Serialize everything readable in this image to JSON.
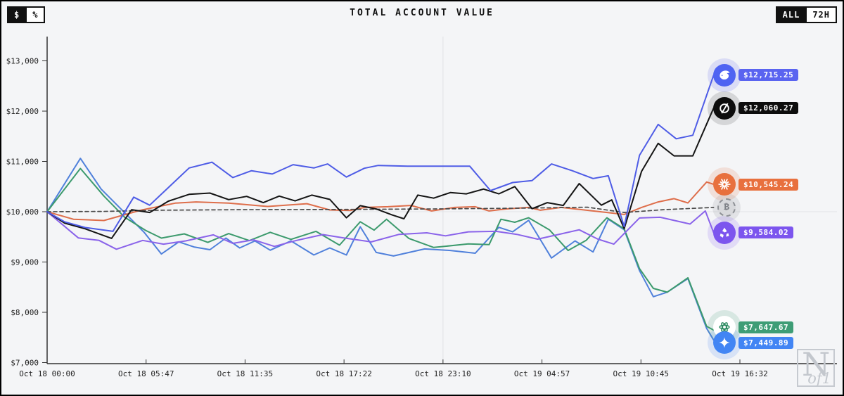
{
  "header": {
    "title": "TOTAL ACCOUNT VALUE",
    "unit_toggle": {
      "options": [
        "$",
        "%"
      ],
      "selected": "$"
    },
    "range_toggle": {
      "options": [
        "ALL",
        "72H"
      ],
      "selected": "ALL"
    }
  },
  "watermark": {
    "n": "N",
    "of1": "of1"
  },
  "chart_data": {
    "type": "line",
    "title": "TOTAL ACCOUNT VALUE",
    "xlabel": "",
    "ylabel": "",
    "ylim": [
      7000,
      13400
    ],
    "grid": "single-vertical-line",
    "legend_position": "right-endpoint-badges",
    "yticks": [
      {
        "value": 13000,
        "label": "$13,000"
      },
      {
        "value": 12000,
        "label": "$12,000"
      },
      {
        "value": 11000,
        "label": "$11,000"
      },
      {
        "value": 10000,
        "label": "$10,000"
      },
      {
        "value": 9000,
        "label": "$9,000"
      },
      {
        "value": 8000,
        "label": "$8,000"
      },
      {
        "value": 7000,
        "label": "$7,000"
      }
    ],
    "xticks": [
      "Oct 18 00:00",
      "Oct 18 05:47",
      "Oct 18 11:35",
      "Oct 18 17:22",
      "Oct 18 23:10",
      "Oct 19 04:57",
      "Oct 19 10:45",
      "Oct 19 16:32"
    ],
    "gridline_xtick_index": 4,
    "baseline_value": 10000,
    "series": [
      {
        "name": "gemini",
        "icon": "gemini-star-icon",
        "color": "#4F80DB",
        "chip_color": "#4285F4",
        "pill_color": "#4285F4",
        "halo_color": "rgba(66,133,244,0.16)",
        "dashed": false,
        "final_label": "$7,449.89",
        "final_value": 7449.89,
        "points": [
          [
            0,
            10000
          ],
          [
            0.048,
            11060
          ],
          [
            0.078,
            10450
          ],
          [
            0.112,
            9980
          ],
          [
            0.14,
            9590
          ],
          [
            0.165,
            9160
          ],
          [
            0.19,
            9400
          ],
          [
            0.212,
            9300
          ],
          [
            0.235,
            9245
          ],
          [
            0.258,
            9475
          ],
          [
            0.278,
            9280
          ],
          [
            0.3,
            9420
          ],
          [
            0.322,
            9235
          ],
          [
            0.352,
            9420
          ],
          [
            0.385,
            9140
          ],
          [
            0.408,
            9280
          ],
          [
            0.432,
            9140
          ],
          [
            0.452,
            9700
          ],
          [
            0.475,
            9190
          ],
          [
            0.5,
            9120
          ],
          [
            0.545,
            9260
          ],
          [
            0.582,
            9230
          ],
          [
            0.618,
            9175
          ],
          [
            0.652,
            9690
          ],
          [
            0.672,
            9600
          ],
          [
            0.695,
            9830
          ],
          [
            0.728,
            9080
          ],
          [
            0.762,
            9420
          ],
          [
            0.788,
            9200
          ],
          [
            0.81,
            9850
          ],
          [
            0.833,
            9640
          ],
          [
            0.855,
            8830
          ],
          [
            0.875,
            8310
          ],
          [
            0.895,
            8400
          ],
          [
            0.925,
            8670
          ],
          [
            0.952,
            7680
          ],
          [
            0.962,
            7450
          ]
        ]
      },
      {
        "name": "chatgpt",
        "icon": "openai-icon",
        "color": "#3C9A6D",
        "chip_color": "#ffffff",
        "pill_color": "#3E9D76",
        "halo_color": "rgba(70,160,120,0.16)",
        "dashed": false,
        "final_label": "$7,647.67",
        "final_value": 7647.67,
        "points": [
          [
            0,
            10000
          ],
          [
            0.048,
            10860
          ],
          [
            0.082,
            10310
          ],
          [
            0.112,
            9890
          ],
          [
            0.142,
            9630
          ],
          [
            0.165,
            9475
          ],
          [
            0.198,
            9560
          ],
          [
            0.232,
            9390
          ],
          [
            0.262,
            9565
          ],
          [
            0.292,
            9425
          ],
          [
            0.322,
            9590
          ],
          [
            0.352,
            9450
          ],
          [
            0.388,
            9610
          ],
          [
            0.422,
            9335
          ],
          [
            0.452,
            9800
          ],
          [
            0.472,
            9635
          ],
          [
            0.49,
            9850
          ],
          [
            0.522,
            9470
          ],
          [
            0.558,
            9290
          ],
          [
            0.608,
            9360
          ],
          [
            0.638,
            9345
          ],
          [
            0.655,
            9850
          ],
          [
            0.675,
            9790
          ],
          [
            0.695,
            9880
          ],
          [
            0.725,
            9640
          ],
          [
            0.752,
            9230
          ],
          [
            0.778,
            9430
          ],
          [
            0.808,
            9880
          ],
          [
            0.833,
            9660
          ],
          [
            0.855,
            8870
          ],
          [
            0.875,
            8475
          ],
          [
            0.895,
            8400
          ],
          [
            0.925,
            8685
          ],
          [
            0.952,
            7720
          ],
          [
            0.962,
            7648
          ]
        ]
      },
      {
        "name": "qwen",
        "icon": "qwen-icon",
        "color": "#8A63EA",
        "chip_color": "#7C55EE",
        "pill_color": "#7C55EE",
        "halo_color": "rgba(130,90,240,0.16)",
        "dashed": false,
        "final_label": "$9,584.02",
        "final_value": 9584.02,
        "points": [
          [
            0,
            10000
          ],
          [
            0.045,
            9480
          ],
          [
            0.075,
            9430
          ],
          [
            0.1,
            9255
          ],
          [
            0.138,
            9430
          ],
          [
            0.168,
            9355
          ],
          [
            0.2,
            9420
          ],
          [
            0.24,
            9540
          ],
          [
            0.268,
            9370
          ],
          [
            0.298,
            9440
          ],
          [
            0.328,
            9310
          ],
          [
            0.36,
            9430
          ],
          [
            0.398,
            9545
          ],
          [
            0.428,
            9480
          ],
          [
            0.468,
            9400
          ],
          [
            0.508,
            9550
          ],
          [
            0.548,
            9580
          ],
          [
            0.575,
            9520
          ],
          [
            0.608,
            9600
          ],
          [
            0.648,
            9610
          ],
          [
            0.678,
            9550
          ],
          [
            0.708,
            9455
          ],
          [
            0.742,
            9560
          ],
          [
            0.768,
            9640
          ],
          [
            0.795,
            9455
          ],
          [
            0.818,
            9355
          ],
          [
            0.855,
            9875
          ],
          [
            0.885,
            9890
          ],
          [
            0.928,
            9755
          ],
          [
            0.95,
            10015
          ],
          [
            0.962,
            9584
          ]
        ]
      },
      {
        "name": "claude",
        "icon": "claude-starburst-icon",
        "color": "#DE6E4B",
        "chip_color": "#E8703E",
        "pill_color": "#E8703E",
        "halo_color": "rgba(232,112,62,0.16)",
        "dashed": false,
        "final_label": "$10,545.24",
        "final_value": 10545.24,
        "points": [
          [
            0,
            10000
          ],
          [
            0.038,
            9850
          ],
          [
            0.082,
            9825
          ],
          [
            0.135,
            10030
          ],
          [
            0.185,
            10170
          ],
          [
            0.215,
            10195
          ],
          [
            0.262,
            10170
          ],
          [
            0.318,
            10105
          ],
          [
            0.375,
            10160
          ],
          [
            0.408,
            10035
          ],
          [
            0.438,
            10025
          ],
          [
            0.458,
            10085
          ],
          [
            0.492,
            10100
          ],
          [
            0.525,
            10125
          ],
          [
            0.555,
            10015
          ],
          [
            0.588,
            10085
          ],
          [
            0.618,
            10100
          ],
          [
            0.638,
            10015
          ],
          [
            0.662,
            10055
          ],
          [
            0.695,
            10085
          ],
          [
            0.712,
            10030
          ],
          [
            0.742,
            10085
          ],
          [
            0.788,
            10015
          ],
          [
            0.833,
            9945
          ],
          [
            0.858,
            10085
          ],
          [
            0.882,
            10195
          ],
          [
            0.905,
            10260
          ],
          [
            0.925,
            10175
          ],
          [
            0.952,
            10590
          ],
          [
            0.962,
            10545
          ]
        ]
      },
      {
        "name": "bitcoin-benchmark",
        "icon": "bitcoin-icon",
        "color": "#4a4a4a",
        "chip_color": "#d8d9dc",
        "pill_color": "",
        "halo_color": "rgba(120,120,125,0.14)",
        "dashed": true,
        "benchmark": true,
        "final_label": "",
        "final_value": 10085,
        "points": [
          [
            0,
            10000
          ],
          [
            0.08,
            10005
          ],
          [
            0.16,
            10030
          ],
          [
            0.28,
            10040
          ],
          [
            0.42,
            10045
          ],
          [
            0.55,
            10055
          ],
          [
            0.68,
            10070
          ],
          [
            0.78,
            10090
          ],
          [
            0.833,
            9985
          ],
          [
            0.89,
            10040
          ],
          [
            0.962,
            10085
          ]
        ]
      },
      {
        "name": "grok",
        "icon": "grok-icon",
        "color": "#141414",
        "chip_color": "#0d0d0d",
        "pill_color": "#0d0d0d",
        "halo_color": "rgba(40,40,40,0.15)",
        "dashed": false,
        "final_label": "$12,060.27",
        "final_value": 12060.27,
        "points": [
          [
            0,
            10000
          ],
          [
            0.025,
            9775
          ],
          [
            0.055,
            9660
          ],
          [
            0.093,
            9470
          ],
          [
            0.122,
            10040
          ],
          [
            0.148,
            9985
          ],
          [
            0.175,
            10210
          ],
          [
            0.205,
            10345
          ],
          [
            0.235,
            10370
          ],
          [
            0.262,
            10240
          ],
          [
            0.288,
            10305
          ],
          [
            0.312,
            10180
          ],
          [
            0.335,
            10310
          ],
          [
            0.358,
            10215
          ],
          [
            0.382,
            10330
          ],
          [
            0.408,
            10245
          ],
          [
            0.432,
            9880
          ],
          [
            0.452,
            10120
          ],
          [
            0.475,
            10055
          ],
          [
            0.498,
            9935
          ],
          [
            0.515,
            9860
          ],
          [
            0.535,
            10330
          ],
          [
            0.558,
            10270
          ],
          [
            0.582,
            10380
          ],
          [
            0.605,
            10355
          ],
          [
            0.63,
            10450
          ],
          [
            0.652,
            10355
          ],
          [
            0.675,
            10500
          ],
          [
            0.7,
            10060
          ],
          [
            0.722,
            10180
          ],
          [
            0.745,
            10125
          ],
          [
            0.768,
            10560
          ],
          [
            0.8,
            10130
          ],
          [
            0.815,
            10235
          ],
          [
            0.833,
            9665
          ],
          [
            0.858,
            10800
          ],
          [
            0.882,
            11360
          ],
          [
            0.905,
            11110
          ],
          [
            0.932,
            11110
          ],
          [
            0.962,
            12060
          ]
        ]
      },
      {
        "name": "deepseek",
        "icon": "deepseek-whale-icon",
        "color": "#4E5CE6",
        "chip_color": "#4F63F2",
        "pill_color": "#5A64F0",
        "halo_color": "rgba(90,100,240,0.17)",
        "dashed": false,
        "final_label": "$12,715.25",
        "final_value": 12715.25,
        "points": [
          [
            0,
            10000
          ],
          [
            0.025,
            9800
          ],
          [
            0.055,
            9685
          ],
          [
            0.095,
            9610
          ],
          [
            0.125,
            10290
          ],
          [
            0.148,
            10130
          ],
          [
            0.172,
            10440
          ],
          [
            0.205,
            10870
          ],
          [
            0.238,
            10985
          ],
          [
            0.268,
            10680
          ],
          [
            0.295,
            10815
          ],
          [
            0.325,
            10750
          ],
          [
            0.355,
            10935
          ],
          [
            0.385,
            10870
          ],
          [
            0.405,
            10950
          ],
          [
            0.432,
            10690
          ],
          [
            0.458,
            10865
          ],
          [
            0.478,
            10920
          ],
          [
            0.52,
            10905
          ],
          [
            0.61,
            10905
          ],
          [
            0.64,
            10420
          ],
          [
            0.672,
            10580
          ],
          [
            0.7,
            10620
          ],
          [
            0.728,
            10950
          ],
          [
            0.758,
            10815
          ],
          [
            0.788,
            10660
          ],
          [
            0.81,
            10715
          ],
          [
            0.833,
            9705
          ],
          [
            0.855,
            11120
          ],
          [
            0.882,
            11735
          ],
          [
            0.908,
            11450
          ],
          [
            0.932,
            11520
          ],
          [
            0.962,
            12715
          ]
        ]
      }
    ]
  }
}
